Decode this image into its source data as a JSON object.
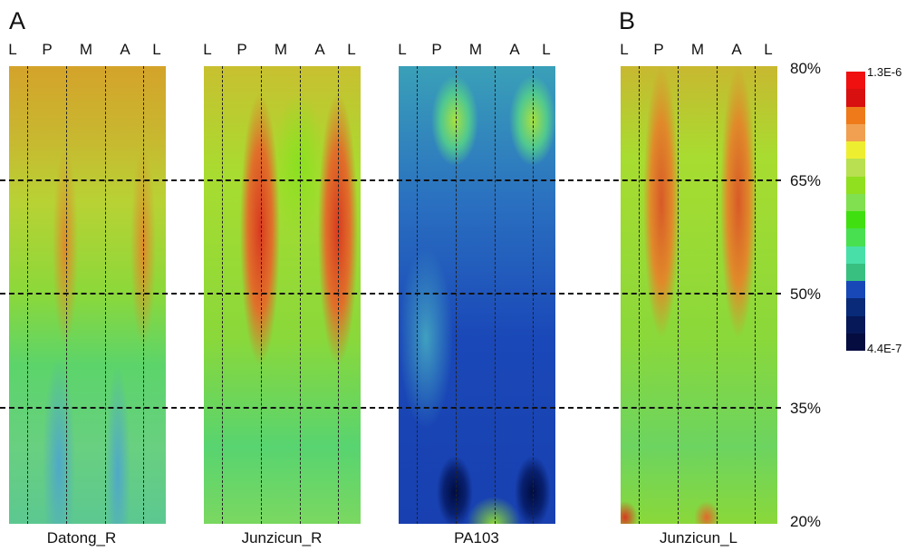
{
  "panel_letters": [
    "A",
    "B"
  ],
  "position_labels": [
    "L",
    "P",
    "M",
    "A",
    "L"
  ],
  "panels": [
    {
      "name": "Datong_R"
    },
    {
      "name": "Junzicun_R"
    },
    {
      "name": "PA103"
    },
    {
      "name": "Junzicun_L"
    }
  ],
  "percent_levels": [
    "80%",
    "65%",
    "50%",
    "35%",
    "20%"
  ],
  "colorbar": {
    "max_label": "1.3E-6",
    "min_label": "4.4E-7",
    "colors": [
      "#f01010",
      "#d81010",
      "#ee7a1a",
      "#f0a050",
      "#eeee30",
      "#b8e050",
      "#90e020",
      "#80e050",
      "#40e010",
      "#48e050",
      "#48e0a8",
      "#38c080",
      "#1848b8",
      "#082a78",
      "#061858",
      "#040c40"
    ]
  }
}
